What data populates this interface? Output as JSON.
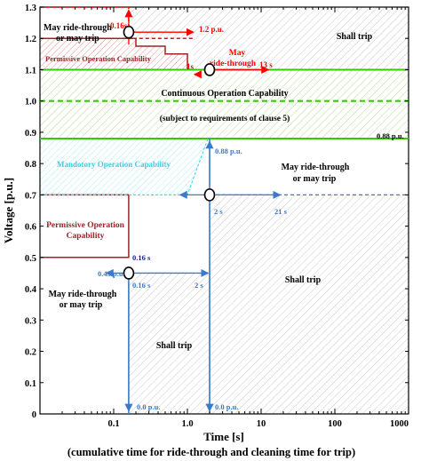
{
  "chart_data": {
    "type": "line",
    "xlabel": "Time [s]",
    "subtitle": "(cumulative time for ride-through and cleaning time for trip)",
    "ylabel": "Voltage [p.u.]",
    "x_scale": "log",
    "xlim": [
      0.01,
      1000
    ],
    "ylim": [
      0,
      1.3
    ],
    "x_ticks": [
      {
        "v": 0.1,
        "label": "0.1"
      },
      {
        "v": 1,
        "label": "1.0"
      },
      {
        "v": 10,
        "label": "10"
      },
      {
        "v": 100,
        "label": "100"
      },
      {
        "v": 1000,
        "label": "1000"
      }
    ],
    "y_ticks": [
      0,
      0.1,
      0.2,
      0.3,
      0.4,
      0.5,
      0.6,
      0.7,
      0.8,
      0.9,
      1.0,
      1.1,
      1.2,
      1.3
    ],
    "y_tick_labels": [
      "0",
      "0.1",
      "0.2",
      "0.3",
      "0.4",
      "0.5",
      "0.6",
      "0.7",
      "0.8",
      "0.9",
      "1.0",
      "1.1",
      "1.2",
      "1.3"
    ],
    "colors": {
      "red": "#ff0000",
      "dark_red": "#a0202a",
      "green": "#33cc00",
      "blue": "#3a7ac8",
      "cyan": "#44ddee",
      "hatch_gray": "#c8c8c8",
      "hatch_green": "#b6dd90",
      "hatch_red": "#e89090",
      "hatch_cyan": "#a8ecf4"
    },
    "series": [
      {
        "role": "ride-through upper boundary (dashed)",
        "points": [
          [
            0.01,
            1.3
          ],
          [
            0.16,
            1.3
          ],
          [
            0.16,
            1.2
          ],
          [
            1.2,
            1.2
          ]
        ]
      },
      {
        "role": "permissive operation upper steps",
        "points": [
          [
            0.01,
            1.2
          ],
          [
            0.2,
            1.2
          ],
          [
            0.2,
            1.175
          ],
          [
            0.5,
            1.175
          ],
          [
            0.5,
            1.15
          ],
          [
            1,
            1.15
          ],
          [
            1,
            1.1
          ],
          [
            13,
            1.1
          ]
        ]
      },
      {
        "role": "continuous operation upper limit",
        "points": [
          [
            0.01,
            1.1
          ],
          [
            1000,
            1.1
          ]
        ]
      },
      {
        "role": "nominal voltage (dashed)",
        "points": [
          [
            0.01,
            1.0
          ],
          [
            1000,
            1.0
          ]
        ]
      },
      {
        "role": "continuous operation lower limit",
        "points": [
          [
            0.01,
            0.88
          ],
          [
            1000,
            0.88
          ]
        ]
      },
      {
        "role": "permissive operation lower boundary",
        "points": [
          [
            0.01,
            0.7
          ],
          [
            0.16,
            0.7
          ],
          [
            0.16,
            0.5
          ],
          [
            0.01,
            0.5
          ]
        ]
      },
      {
        "role": "mandatory operation edge (dashed)",
        "points": [
          [
            0.01,
            0.7
          ],
          [
            1,
            0.7
          ],
          [
            1.9,
            0.88
          ]
        ]
      },
      {
        "role": "0.16 s trip line",
        "points": [
          [
            0.16,
            0
          ],
          [
            0.16,
            0.45
          ]
        ]
      },
      {
        "role": "2 s trip line",
        "points": [
          [
            2,
            0
          ],
          [
            2,
            0.88
          ]
        ]
      },
      {
        "role": "21 s dashed",
        "points": [
          [
            2,
            0.7
          ],
          [
            1000,
            0.7
          ]
        ]
      }
    ],
    "region_labels": {
      "shall_trip_top": "Shall trip",
      "may_ride_top_1": "May ride-through",
      "may_ride_top_2": "or may trip",
      "permissive_top": "Permissive Operation Capability",
      "may_ride_through_1": "May",
      "may_ride_through_2": "ride-through",
      "continuous_1": "Continuous Operation Capability",
      "continuous_2": "(subject to requirements of clause 5)",
      "mandatory": "Mandotory Operation Capability",
      "may_ride_mid_1": "May ride-through",
      "may_ride_mid_2": "or may trip",
      "permissive_low_1": "Permissive Operation",
      "permissive_low_2": "Capability",
      "may_ride_low_1": "May ride-through",
      "may_ride_low_2": "or may trip",
      "shall_trip_mid": "Shall trip",
      "shall_trip_low": "Shall trip"
    },
    "annotations": {
      "t016_top": "0.16s",
      "v12": "1.2 p.u.",
      "t1s": "1s",
      "t13": "13 s",
      "v088_right": "0.88 p.u.",
      "v088_top": "0.88 p.u.",
      "t2_left": "2 s",
      "t21": "21 s",
      "t016_red": "0.16 s",
      "v045": "0.45 p.u.",
      "t016_blue": "0.16 s",
      "t2_bottom": "2 s",
      "v00_a": "0.0 p.u.",
      "v00_b": "0.0 p.u."
    }
  }
}
